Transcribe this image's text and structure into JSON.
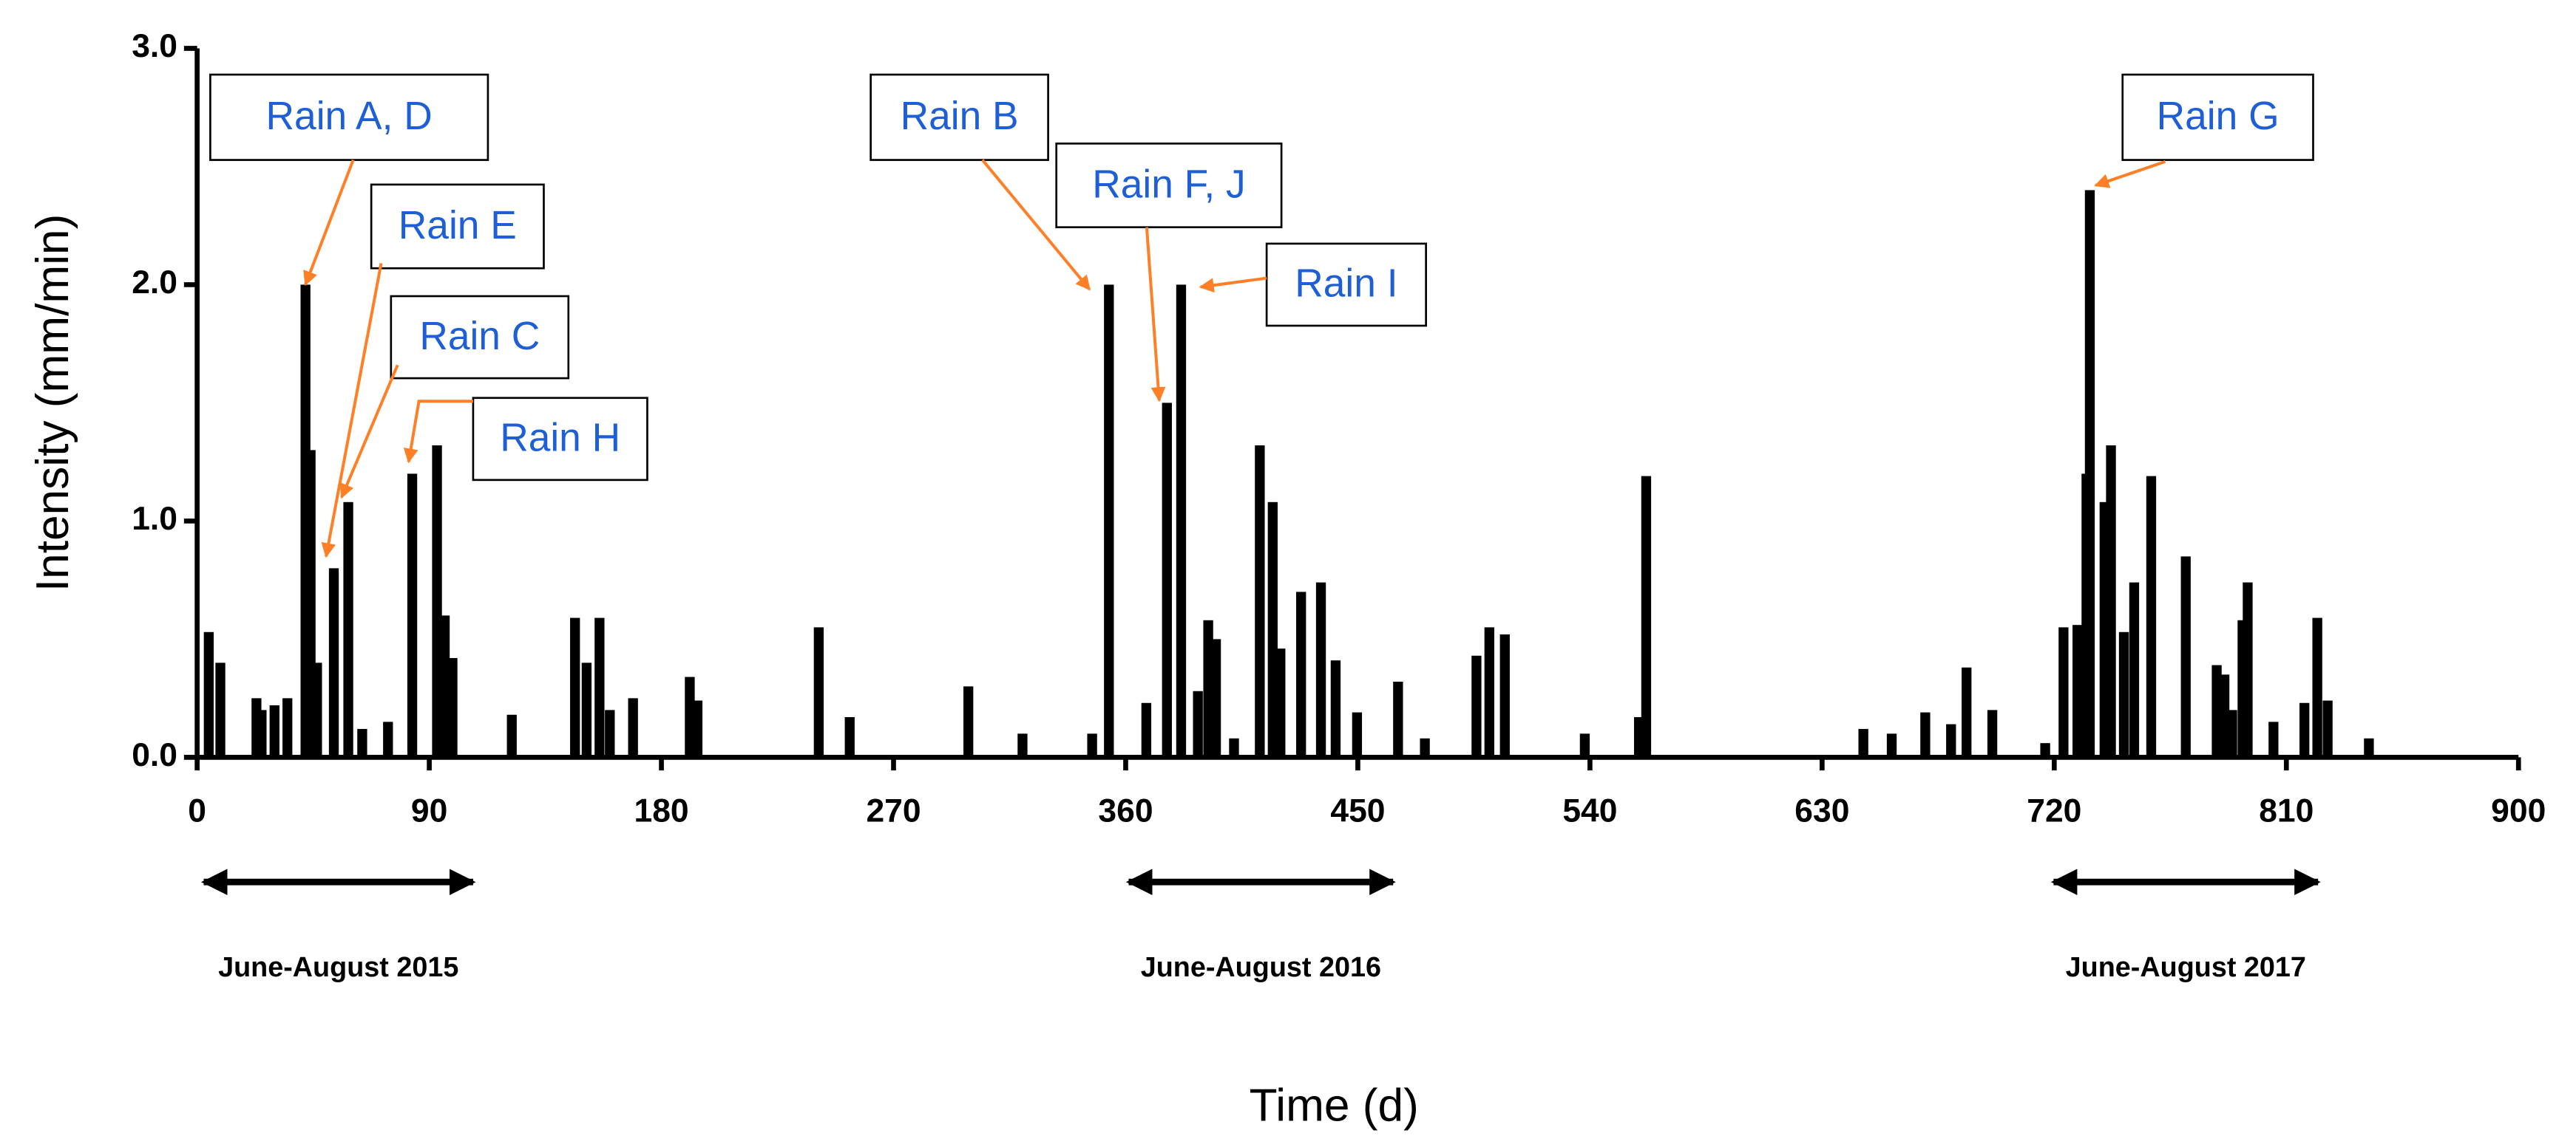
{
  "chart_data": {
    "type": "bar",
    "xlabel": "Time (d)",
    "ylabel": "Intensity (mm/min)",
    "color": "#000000",
    "x": [
      4.5,
      9,
      23,
      25,
      30,
      35,
      42,
      44,
      46.5,
      53,
      58.6,
      64,
      74,
      83.4,
      93,
      96,
      99,
      122,
      146.5,
      151,
      156,
      160,
      169,
      191,
      194,
      241,
      253,
      299,
      320,
      347,
      353.5,
      368,
      376,
      381.5,
      388,
      392,
      395,
      402,
      412,
      417,
      420,
      428,
      435.7,
      441.4,
      449.7,
      465.6,
      476,
      496,
      501,
      507,
      538,
      559,
      561.8,
      646,
      657,
      670,
      680,
      686,
      696,
      716.5,
      723.6,
      729,
      732.5,
      733.8,
      739.5,
      742,
      747,
      751,
      757.6,
      771,
      783,
      786,
      789,
      793,
      795,
      805,
      817,
      822,
      826,
      842
    ],
    "values": [
      0.53,
      0.4,
      0.25,
      0.2,
      0.22,
      0.25,
      2.0,
      1.3,
      0.4,
      0.8,
      1.08,
      0.12,
      0.15,
      1.2,
      1.32,
      0.6,
      0.42,
      0.18,
      0.59,
      0.4,
      0.59,
      0.2,
      0.25,
      0.34,
      0.24,
      0.55,
      0.17,
      0.3,
      0.1,
      0.1,
      2.0,
      0.23,
      1.5,
      2.0,
      0.28,
      0.58,
      0.5,
      0.08,
      1.32,
      1.08,
      0.46,
      0.7,
      0.74,
      0.41,
      0.19,
      0.32,
      0.08,
      0.43,
      0.55,
      0.52,
      0.1,
      0.17,
      1.19,
      0.12,
      0.1,
      0.19,
      0.14,
      0.38,
      0.2,
      0.06,
      0.55,
      0.56,
      1.2,
      2.4,
      1.08,
      1.32,
      0.53,
      0.74,
      1.19,
      0.85,
      0.39,
      0.35,
      0.2,
      0.58,
      0.74,
      0.15,
      0.23,
      0.59,
      0.24,
      0.08
    ],
    "xlim": [
      0,
      900
    ],
    "xticks": [
      0,
      90,
      180,
      270,
      360,
      450,
      540,
      630,
      720,
      810,
      900
    ],
    "ylim": [
      0,
      3.0
    ],
    "yticks": [
      {
        "value": 0,
        "label": "0.0"
      },
      {
        "value": 1,
        "label": "1.0"
      },
      {
        "value": 2,
        "label": "2.0"
      },
      {
        "value": 3,
        "label": "3.0"
      }
    ],
    "annotations": [
      {
        "text": "Rain A, D",
        "x": 42,
        "y": 2.0
      },
      {
        "text": "Rain E",
        "x": 50,
        "y": 0.85
      },
      {
        "text": "Rain C",
        "x": 56,
        "y": 1.1
      },
      {
        "text": "Rain H",
        "x": 82,
        "y": 1.25
      },
      {
        "text": "Rain B",
        "x": 346,
        "y": 1.98
      },
      {
        "text": "Rain F, J",
        "x": 373,
        "y": 1.51
      },
      {
        "text": "Rain I",
        "x": 389,
        "y": 1.99
      },
      {
        "text": "Rain G",
        "x": 736,
        "y": 2.42
      }
    ],
    "periods": [
      "June-August 2015",
      "June-August 2016",
      "June-August 2017"
    ]
  }
}
